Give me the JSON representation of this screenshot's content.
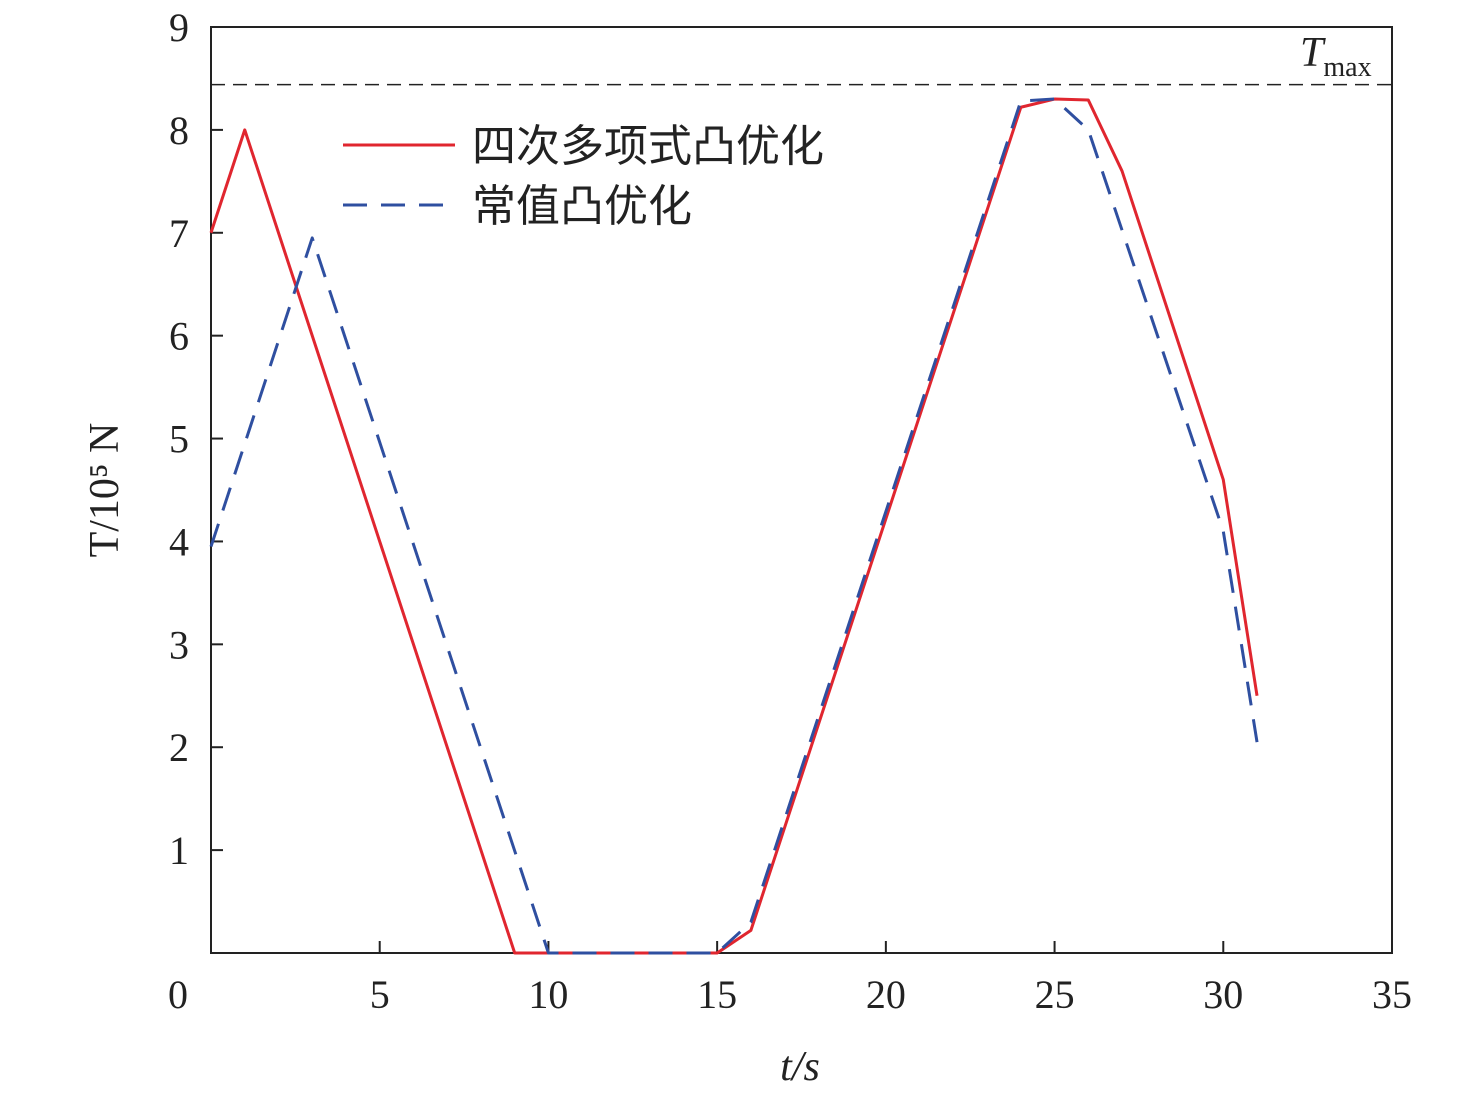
{
  "chart_data": {
    "type": "line",
    "x_label": "t/s",
    "y_label": "T/10⁵ N",
    "reference_line": {
      "value": 8.44,
      "label": "T",
      "label_sub": "max"
    },
    "xlim": [
      0,
      35
    ],
    "xticks": [
      0,
      5,
      10,
      15,
      20,
      25,
      30,
      35
    ],
    "ylim": [
      0,
      9
    ],
    "yticks": [
      1,
      2,
      3,
      4,
      5,
      6,
      7,
      8,
      9
    ],
    "series": [
      {
        "name": "四次多项式凸优化",
        "color": "#e0262f",
        "dash": false,
        "x": [
          0,
          1,
          9,
          10,
          15,
          16,
          24,
          25,
          26,
          27,
          30,
          31
        ],
        "values": [
          7.0,
          8.0,
          0,
          0,
          0,
          0.22,
          8.22,
          8.3,
          8.29,
          7.6,
          4.6,
          2.5
        ]
      },
      {
        "name": "常值凸优化",
        "color": "#2f4fa0",
        "dash": true,
        "x": [
          0,
          3,
          10,
          15,
          16,
          24,
          25,
          26,
          30,
          31
        ],
        "values": [
          3.95,
          6.95,
          0,
          0,
          0.3,
          8.28,
          8.3,
          8.0,
          4.1,
          2.05
        ]
      }
    ]
  }
}
